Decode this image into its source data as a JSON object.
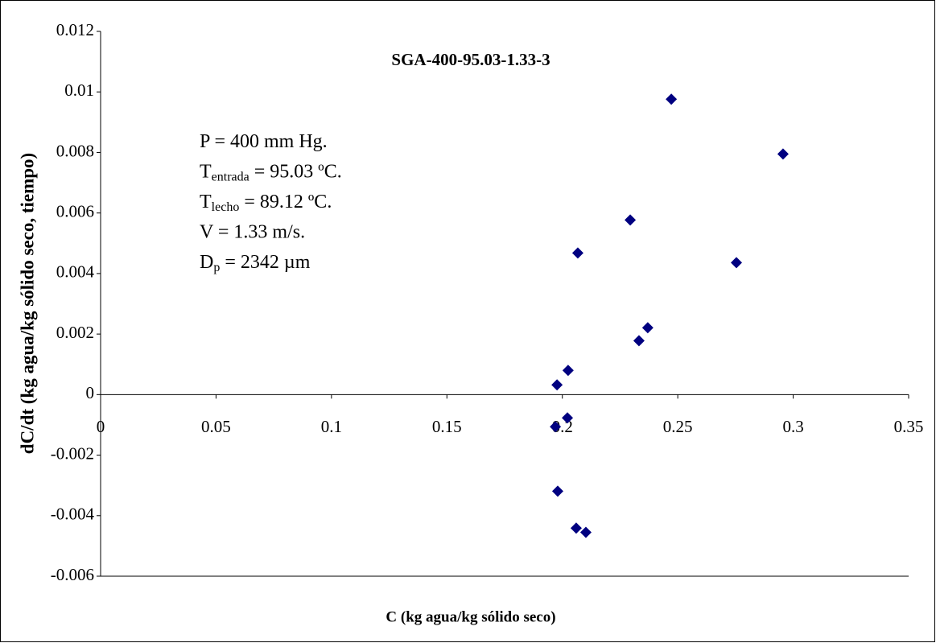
{
  "chart_data": {
    "type": "scatter",
    "title": "SGA-400-95.03-1.33-3",
    "x_label": "C (kg agua/kg sólido seco)",
    "y_label": "dC/dt  (kg agua/kg sólido seco, tiempo)",
    "annotations": [
      {
        "base": "P = 400 mm Hg."
      },
      {
        "base": "T",
        "sub": "entrada",
        "rest": " = 95.03 ºC."
      },
      {
        "base": "T",
        "sub": "lecho",
        "rest": " = 89.12 ºC."
      },
      {
        "base": "V = 1.33 m/s."
      },
      {
        "base": "D",
        "sub": "p",
        "rest": " = 2342 µm"
      }
    ],
    "series": [
      {
        "color": "#000080",
        "x": [
          0.197,
          0.1977,
          0.198,
          0.2025,
          0.2022,
          0.206,
          0.2067,
          0.2102,
          0.2294,
          0.2332,
          0.237,
          0.2472,
          0.2754,
          0.2956
        ],
        "values": [
          -0.00106,
          0.00032,
          -0.00319,
          0.0008,
          -0.00077,
          -0.00441,
          0.00468,
          -0.00455,
          0.00577,
          0.00178,
          0.00221,
          0.00976,
          0.00436,
          0.00795
        ]
      }
    ],
    "xlim": [
      0,
      0.35
    ],
    "xticks": [
      0,
      0.05,
      0.1,
      0.15,
      0.2,
      0.25,
      0.3,
      0.35
    ],
    "ylim": [
      -0.006,
      0.012
    ],
    "yticks": [
      -0.006,
      -0.004,
      -0.002,
      0,
      0.002,
      0.004,
      0.006,
      0.008,
      0.01,
      0.012
    ],
    "grid": false
  }
}
